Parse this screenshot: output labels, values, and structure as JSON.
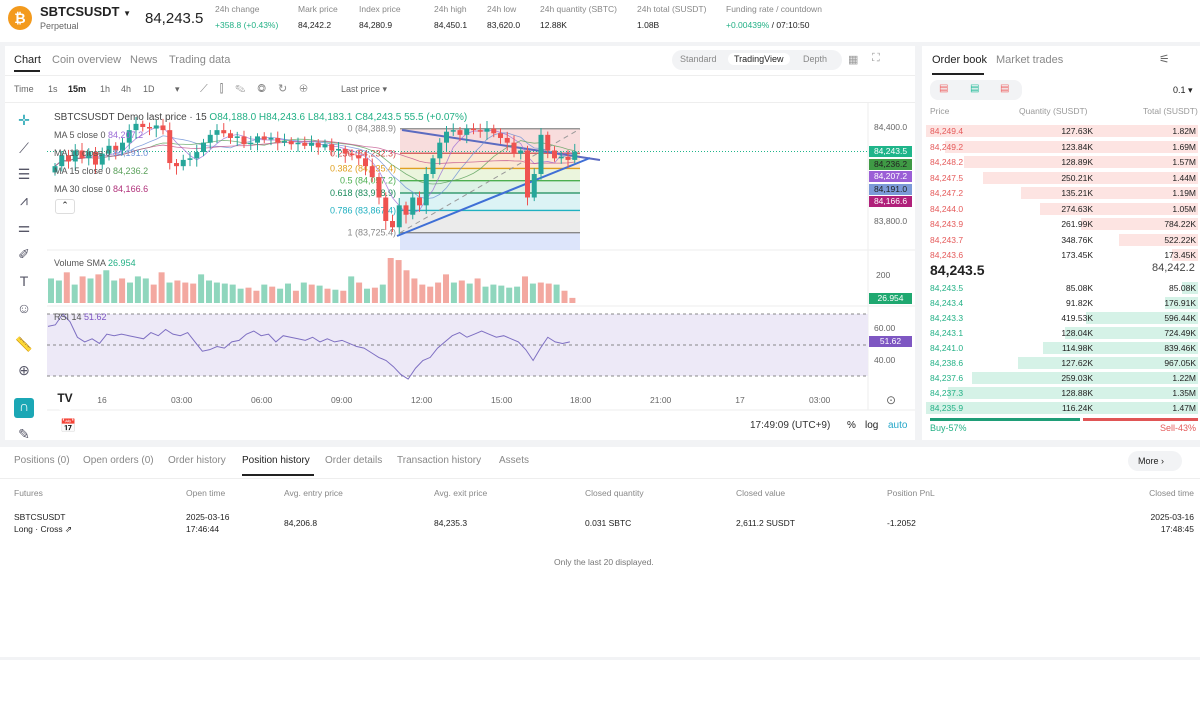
{
  "header": {
    "symbol": "SBTCSUSDT",
    "type": "Perpetual",
    "last_price": "84,243.5",
    "stats": [
      {
        "label": "24h change",
        "value": "+358.8 (+0.43%)",
        "color": "green"
      },
      {
        "label": "Mark price",
        "value": "84,242.2"
      },
      {
        "label": "Index price",
        "value": "84,280.9"
      },
      {
        "label": "24h high",
        "value": "84,450.1"
      },
      {
        "label": "24h low",
        "value": "83,620.0"
      },
      {
        "label": "24h quantity (SBTC)",
        "value": "12.88K"
      },
      {
        "label": "24h total (SUSDT)",
        "value": "1.08B"
      },
      {
        "label": "Funding rate / countdown",
        "value": "+0.00439%",
        "value2": " / 07:10:50",
        "color": "green"
      }
    ]
  },
  "chart_panel": {
    "tabs": [
      "Chart",
      "Coin overview",
      "News",
      "Trading data"
    ],
    "views": [
      "Standard",
      "TradingView",
      "Depth"
    ],
    "intervals": [
      "Time",
      "1s",
      "15m",
      "1h",
      "4h",
      "1D"
    ],
    "price_type": "Last price ▾",
    "legend": {
      "title": "SBTCSUSDT Demo last price · 15",
      "o": "O84,188.0",
      "h": "H84,243.6",
      "l": "L84,183.1",
      "c": "C84,243.5",
      "chg": "55.5 (+0.07%)"
    },
    "ma": [
      {
        "label": "MA 5 close 0",
        "value": "84,207.2",
        "color": "#9b6bd6"
      },
      {
        "label": "MA 10 close 0",
        "value": "84,191.0",
        "color": "#6b8fd6"
      },
      {
        "label": "MA 15 close 0",
        "value": "84,236.2",
        "color": "#5aa05a"
      },
      {
        "label": "MA 30 close 0",
        "value": "84,166.6",
        "color": "#b0307a"
      }
    ],
    "fib": [
      {
        "label": "0 (84,388.9)",
        "price": 84388.9,
        "color": "#888"
      },
      {
        "label": "0.236 (84,232.3)",
        "price": 84232.3,
        "color": "#d05050"
      },
      {
        "label": "0.382 (84,135.4)",
        "price": 84135.4,
        "color": "#e0a020"
      },
      {
        "label": "0.5 (84,057.2)",
        "price": 84057.2,
        "color": "#4caf50"
      },
      {
        "label": "0.618 (83,978.9)",
        "price": 83978.9,
        "color": "#1a8a5a"
      },
      {
        "label": "0.786 (83,867.4)",
        "price": 83867.4,
        "color": "#20b0c0"
      },
      {
        "label": "1 (83,725.4)",
        "price": 83725.4,
        "color": "#888"
      }
    ],
    "price_axis": [
      "84,400.0",
      "83,800.0"
    ],
    "price_tags": [
      {
        "v": "84,243.5",
        "c": "#1fb58a"
      },
      {
        "v": "84,236.2",
        "c": "#3f9a45"
      },
      {
        "v": "84,207.2",
        "c": "#9b5fd6"
      },
      {
        "v": "84,191.0",
        "c": "#7c9ad8"
      },
      {
        "v": "84,166.6",
        "c": "#b0207a"
      }
    ],
    "volume": {
      "label": "Volume SMA",
      "value": "26.954",
      "axis": "200"
    },
    "rsi": {
      "label": "RSI 14",
      "value": "51.62",
      "axis": [
        "60.00",
        "40.00"
      ]
    },
    "time_axis": [
      "16",
      "03:00",
      "06:00",
      "09:00",
      "12:00",
      "15:00",
      "18:00",
      "21:00",
      "17",
      "03:00"
    ],
    "clock": "17:49:09 (UTC+9)",
    "pct": "%",
    "log": "log",
    "auto": "auto",
    "closes": [
      84150,
      84220,
      84180,
      84250,
      84200,
      84240,
      84160,
      84230,
      84280,
      84250,
      84300,
      84380,
      84420,
      84400,
      84390,
      84410,
      84380,
      84170,
      84150,
      84190,
      84200,
      84240,
      84300,
      84350,
      84380,
      84360,
      84330,
      84340,
      84290,
      84300,
      84340,
      84320,
      84330,
      84300,
      84310,
      84290,
      84300,
      84280,
      84300,
      84270,
      84290,
      84250,
      84260,
      84230,
      84220,
      84200,
      84150,
      84080,
      83950,
      83800,
      83760,
      83900,
      83840,
      83950,
      83900,
      84100,
      84200,
      84300,
      84370,
      84380,
      84350,
      84390,
      84380,
      84370,
      84390,
      84360,
      84330,
      84300,
      84230,
      84250,
      83950,
      84100,
      84350,
      84250,
      84200,
      84210,
      84190,
      84243
    ],
    "volumes": [
      120,
      110,
      150,
      90,
      130,
      120,
      140,
      160,
      110,
      120,
      100,
      130,
      120,
      90,
      150,
      100,
      110,
      100,
      95,
      140,
      110,
      100,
      95,
      90,
      70,
      75,
      60,
      90,
      80,
      70,
      95,
      60,
      100,
      90,
      85,
      70,
      65,
      60,
      130,
      100,
      70,
      75,
      90,
      220,
      210,
      160,
      120,
      90,
      80,
      100,
      140,
      100,
      110,
      95,
      120,
      80,
      90,
      85,
      75,
      80,
      130,
      95,
      100,
      95,
      90,
      60,
      25
    ],
    "rsi_values": [
      62,
      63,
      70,
      65,
      55,
      52,
      54,
      51,
      57,
      56,
      57,
      56,
      55,
      54,
      58,
      56,
      60,
      57,
      56,
      58,
      52,
      46,
      47,
      49,
      48,
      52,
      53,
      57,
      59,
      56,
      57,
      52,
      56,
      55,
      54,
      53,
      55,
      52,
      54,
      52,
      53,
      51,
      49,
      48,
      45,
      42,
      40,
      36,
      31,
      28,
      35,
      40,
      42,
      48,
      52,
      56,
      58,
      55,
      57,
      59,
      57,
      55,
      56,
      54,
      52,
      47,
      40,
      48,
      55,
      52,
      51,
      52
    ],
    "toolbar_icons": [
      "crosshair-icon",
      "trend-line-icon",
      "horizontal-lines-icon",
      "pattern-icon",
      "fib-icon",
      "brush-icon",
      "text-icon",
      "emoji-icon",
      "ruler-icon",
      "zoom-in-icon",
      "magnet-icon",
      "pencil-lock-icon"
    ]
  },
  "order_book": {
    "tabs": [
      "Order book",
      "Market trades"
    ],
    "precision": "0.1 ▾",
    "cols": [
      "Price",
      "Quantity (SUSDT)",
      "Total (SUSDT)"
    ],
    "asks": [
      [
        "84,249.4",
        "127.63K",
        "1.82M",
        1
      ],
      [
        "84,249.2",
        "123.84K",
        "1.69M",
        0.93
      ],
      [
        "84,248.2",
        "128.89K",
        "1.57M",
        0.86
      ],
      [
        "84,247.5",
        "250.21K",
        "1.44M",
        0.79
      ],
      [
        "84,247.2",
        "135.21K",
        "1.19M",
        0.65
      ],
      [
        "84,244.0",
        "274.63K",
        "1.05M",
        0.58
      ],
      [
        "84,243.9",
        "261.99K",
        "784.22K",
        0.43
      ],
      [
        "84,243.7",
        "348.76K",
        "522.22K",
        0.29
      ],
      [
        "84,243.6",
        "173.45K",
        "173.45K",
        0.095
      ]
    ],
    "mid_price": "84,243.5",
    "mark_price": "84,242.2",
    "bids": [
      [
        "84,243.5",
        "85.08K",
        "85.08K",
        0.06
      ],
      [
        "84,243.4",
        "91.82K",
        "176.91K",
        0.12
      ],
      [
        "84,243.3",
        "419.53K",
        "596.44K",
        0.41
      ],
      [
        "84,243.1",
        "128.04K",
        "724.49K",
        0.49
      ],
      [
        "84,241.0",
        "114.98K",
        "839.46K",
        0.57
      ],
      [
        "84,238.6",
        "127.62K",
        "967.05K",
        0.66
      ],
      [
        "84,237.6",
        "259.03K",
        "1.22M",
        0.83
      ],
      [
        "84,237.3",
        "128.88K",
        "1.35M",
        0.92
      ],
      [
        "84,235.9",
        "116.24K",
        "1.47M",
        1
      ]
    ],
    "buy_label": "Buy-57%",
    "sell_label": "Sell-43%",
    "buy_pct": 57
  },
  "bottom": {
    "tabs": [
      "Positions (0)",
      "Open orders (0)",
      "Order history",
      "Position history",
      "Order details",
      "Transaction history",
      "Assets"
    ],
    "more": "More",
    "cols": [
      "Futures",
      "Open time",
      "Avg. entry price",
      "Avg. exit price",
      "Closed quantity",
      "Closed value",
      "Position PnL",
      "Closed time"
    ],
    "row": {
      "symbol": "SBTCSUSDT",
      "side": "Long · Cross",
      "open_date": "2025-03-16",
      "open_time": "17:46:44",
      "entry": "84,206.8",
      "exit": "84,235.3",
      "qty": "0.031 SBTC",
      "value": "2,611.2 SUSDT",
      "pnl": "-1.2052",
      "close_date": "2025-03-16",
      "close_time": "17:48:45"
    },
    "note": "Only the last 20 displayed."
  }
}
